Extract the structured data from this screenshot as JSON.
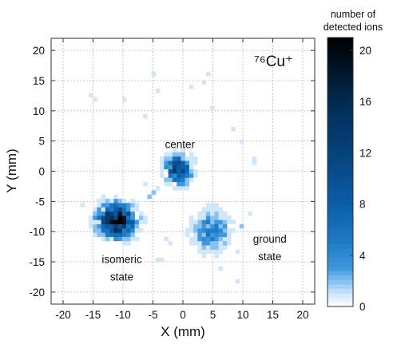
{
  "chart_data": {
    "type": "heatmap",
    "title": "⁷⁶Cu⁺",
    "xlabel": "X (mm)",
    "ylabel": "Y (mm)",
    "xlim": [
      -22,
      22
    ],
    "ylim": [
      -22,
      22
    ],
    "xticks": [
      -20,
      -15,
      -10,
      -5,
      0,
      5,
      10,
      15,
      20
    ],
    "yticks": [
      -20,
      -15,
      -10,
      -5,
      0,
      5,
      10,
      15,
      20
    ],
    "grid": true,
    "bin_width_mm": 0.7,
    "colorbar": {
      "title": "number of detected ions",
      "range": [
        0,
        21
      ],
      "ticks": [
        0,
        4,
        8,
        12,
        16,
        20
      ],
      "colors": [
        "#ffffff",
        "#cfe6fb",
        "#87c1f0",
        "#3e98dd",
        "#1f7cc7",
        "#0b5ea8",
        "#05437c",
        "#022b52",
        "#000000"
      ],
      "stops": [
        0,
        1,
        2,
        3,
        5,
        8,
        12,
        16,
        21
      ]
    },
    "clusters": [
      {
        "label": "center",
        "x": -0.7,
        "y": 0.2,
        "sigma_x": 1.3,
        "sigma_y": 1.4,
        "peak": 11
      },
      {
        "label": "isomeric state",
        "x": -11.0,
        "y": -8.5,
        "sigma_x": 1.8,
        "sigma_y": 1.6,
        "peak": 19
      },
      {
        "label": "ground state",
        "x": 5.0,
        "y": -10.3,
        "sigma_x": 1.7,
        "sigma_y": 1.9,
        "peak": 5
      }
    ],
    "annotations": [
      {
        "text": "center",
        "x": -0.5,
        "y": 3.8
      },
      {
        "text": "isomeric",
        "x": -10.2,
        "y": -15.2
      },
      {
        "text": "state",
        "x": -10.2,
        "y": -18.1
      },
      {
        "text": "ground",
        "x": 14.5,
        "y": -11.8
      },
      {
        "text": "state",
        "x": 14.5,
        "y": -14.7
      }
    ],
    "scattered_counts": [
      {
        "x": -15.5,
        "y": 12.5,
        "v": 1
      },
      {
        "x": -15.0,
        "y": 11.6,
        "v": 1
      },
      {
        "x": -9.6,
        "y": 12.0,
        "v": 1
      },
      {
        "x": -4.8,
        "y": 16.2,
        "v": 1
      },
      {
        "x": -4.0,
        "y": 13.0,
        "v": 1
      },
      {
        "x": 1.2,
        "y": 14.0,
        "v": 1
      },
      {
        "x": 3.8,
        "y": 15.0,
        "v": 1
      },
      {
        "x": 4.3,
        "y": 16.0,
        "v": 1
      },
      {
        "x": 5.2,
        "y": 10.5,
        "v": 1
      },
      {
        "x": -6.3,
        "y": 9.1,
        "v": 1
      },
      {
        "x": 8.7,
        "y": 7.0,
        "v": 1
      },
      {
        "x": 9.6,
        "y": 5.1,
        "v": 1
      },
      {
        "x": 12.0,
        "y": 2.0,
        "v": 1
      },
      {
        "x": 12.0,
        "y": 1.2,
        "v": 1
      },
      {
        "x": -16.5,
        "y": -5.5,
        "v": 1
      },
      {
        "x": -4.5,
        "y": -14.5,
        "v": 1
      },
      {
        "x": -3.7,
        "y": -14.5,
        "v": 1
      },
      {
        "x": 6.0,
        "y": -16.0,
        "v": 1
      },
      {
        "x": 9.0,
        "y": -18.0,
        "v": 1
      },
      {
        "x": 11.0,
        "y": -7.0,
        "v": 1
      },
      {
        "x": -3.0,
        "y": -11.0,
        "v": 1
      },
      {
        "x": -2.0,
        "y": -12.0,
        "v": 1
      },
      {
        "x": -5.5,
        "y": -4.0,
        "v": 2
      },
      {
        "x": -4.8,
        "y": -3.4,
        "v": 2
      },
      {
        "x": -4.2,
        "y": -2.7,
        "v": 1
      },
      {
        "x": -6.0,
        "y": -2.0,
        "v": 1
      },
      {
        "x": 2.5,
        "y": -7.0,
        "v": 1
      },
      {
        "x": 1.8,
        "y": -8.5,
        "v": 1
      },
      {
        "x": 9.5,
        "y": -9.0,
        "v": 2
      },
      {
        "x": 9.0,
        "y": -13.0,
        "v": 1
      }
    ]
  }
}
